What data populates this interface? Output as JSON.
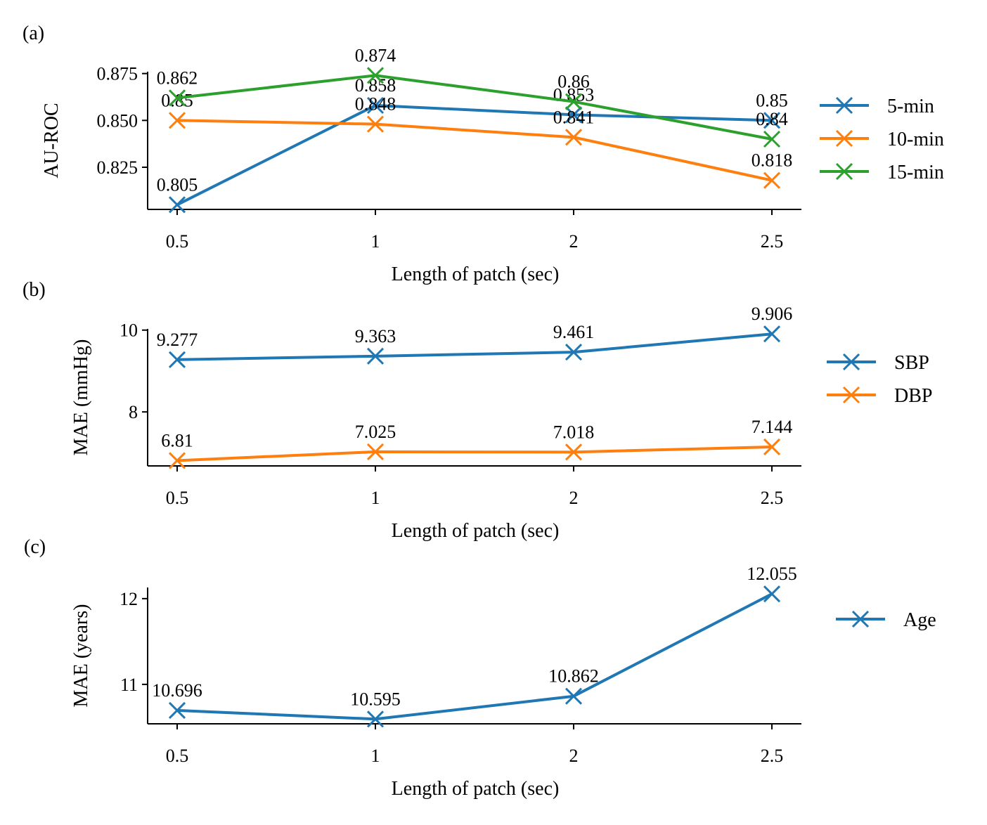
{
  "chart_data": [
    {
      "type": "line",
      "panel_label": "(a)",
      "xlabel": "Length of patch (sec)",
      "ylabel": "AU-ROC",
      "categories": [
        "0.5",
        "1",
        "2",
        "2.5"
      ],
      "ylim": [
        0.8025,
        0.876
      ],
      "yticks": [
        0.825,
        0.85,
        0.875
      ],
      "ytick_labels": [
        "0.825",
        "0.850",
        "0.875"
      ],
      "legend_position": "right",
      "series": [
        {
          "name": "5-min",
          "color": "#1f77b4",
          "values": [
            0.805,
            0.858,
            0.853,
            0.85
          ],
          "labels": [
            "0.805",
            "0.858",
            "0.853",
            "0.85"
          ]
        },
        {
          "name": "10-min",
          "color": "#ff7f0e",
          "values": [
            0.85,
            0.848,
            0.841,
            0.818
          ],
          "labels": [
            "0.85",
            "0.848",
            "0.841",
            "0.818"
          ]
        },
        {
          "name": "15-min",
          "color": "#2ca02c",
          "values": [
            0.862,
            0.874,
            0.86,
            0.84
          ],
          "labels": [
            "0.862",
            "0.874",
            "0.86",
            "0.84"
          ]
        }
      ]
    },
    {
      "type": "line",
      "panel_label": "(b)",
      "xlabel": "Length of patch (sec)",
      "ylabel": "MAE (mmHg)",
      "categories": [
        "0.5",
        "1",
        "2",
        "2.5"
      ],
      "ylim": [
        6.68,
        10.03
      ],
      "yticks": [
        8,
        10
      ],
      "ytick_labels": [
        "8",
        "10"
      ],
      "legend_position": "right",
      "series": [
        {
          "name": "SBP",
          "color": "#1f77b4",
          "values": [
            9.277,
            9.363,
            9.461,
            9.906
          ],
          "labels": [
            "9.277",
            "9.363",
            "9.461",
            "9.906"
          ]
        },
        {
          "name": "DBP",
          "color": "#ff7f0e",
          "values": [
            6.81,
            7.025,
            7.018,
            7.144
          ],
          "labels": [
            "6.81",
            "7.025",
            "7.018",
            "7.144"
          ]
        }
      ]
    },
    {
      "type": "line",
      "panel_label": "(c)",
      "xlabel": "Length of patch (sec)",
      "ylabel": "MAE (years)",
      "categories": [
        "0.5",
        "1",
        "2",
        "2.5"
      ],
      "ylim": [
        10.54,
        12.13
      ],
      "yticks": [
        11,
        12
      ],
      "ytick_labels": [
        "11",
        "12"
      ],
      "legend_position": "right",
      "series": [
        {
          "name": "Age",
          "color": "#1f77b4",
          "values": [
            10.696,
            10.595,
            10.862,
            12.055
          ],
          "labels": [
            "10.696",
            "10.595",
            "10.862",
            "12.055"
          ]
        }
      ]
    }
  ]
}
